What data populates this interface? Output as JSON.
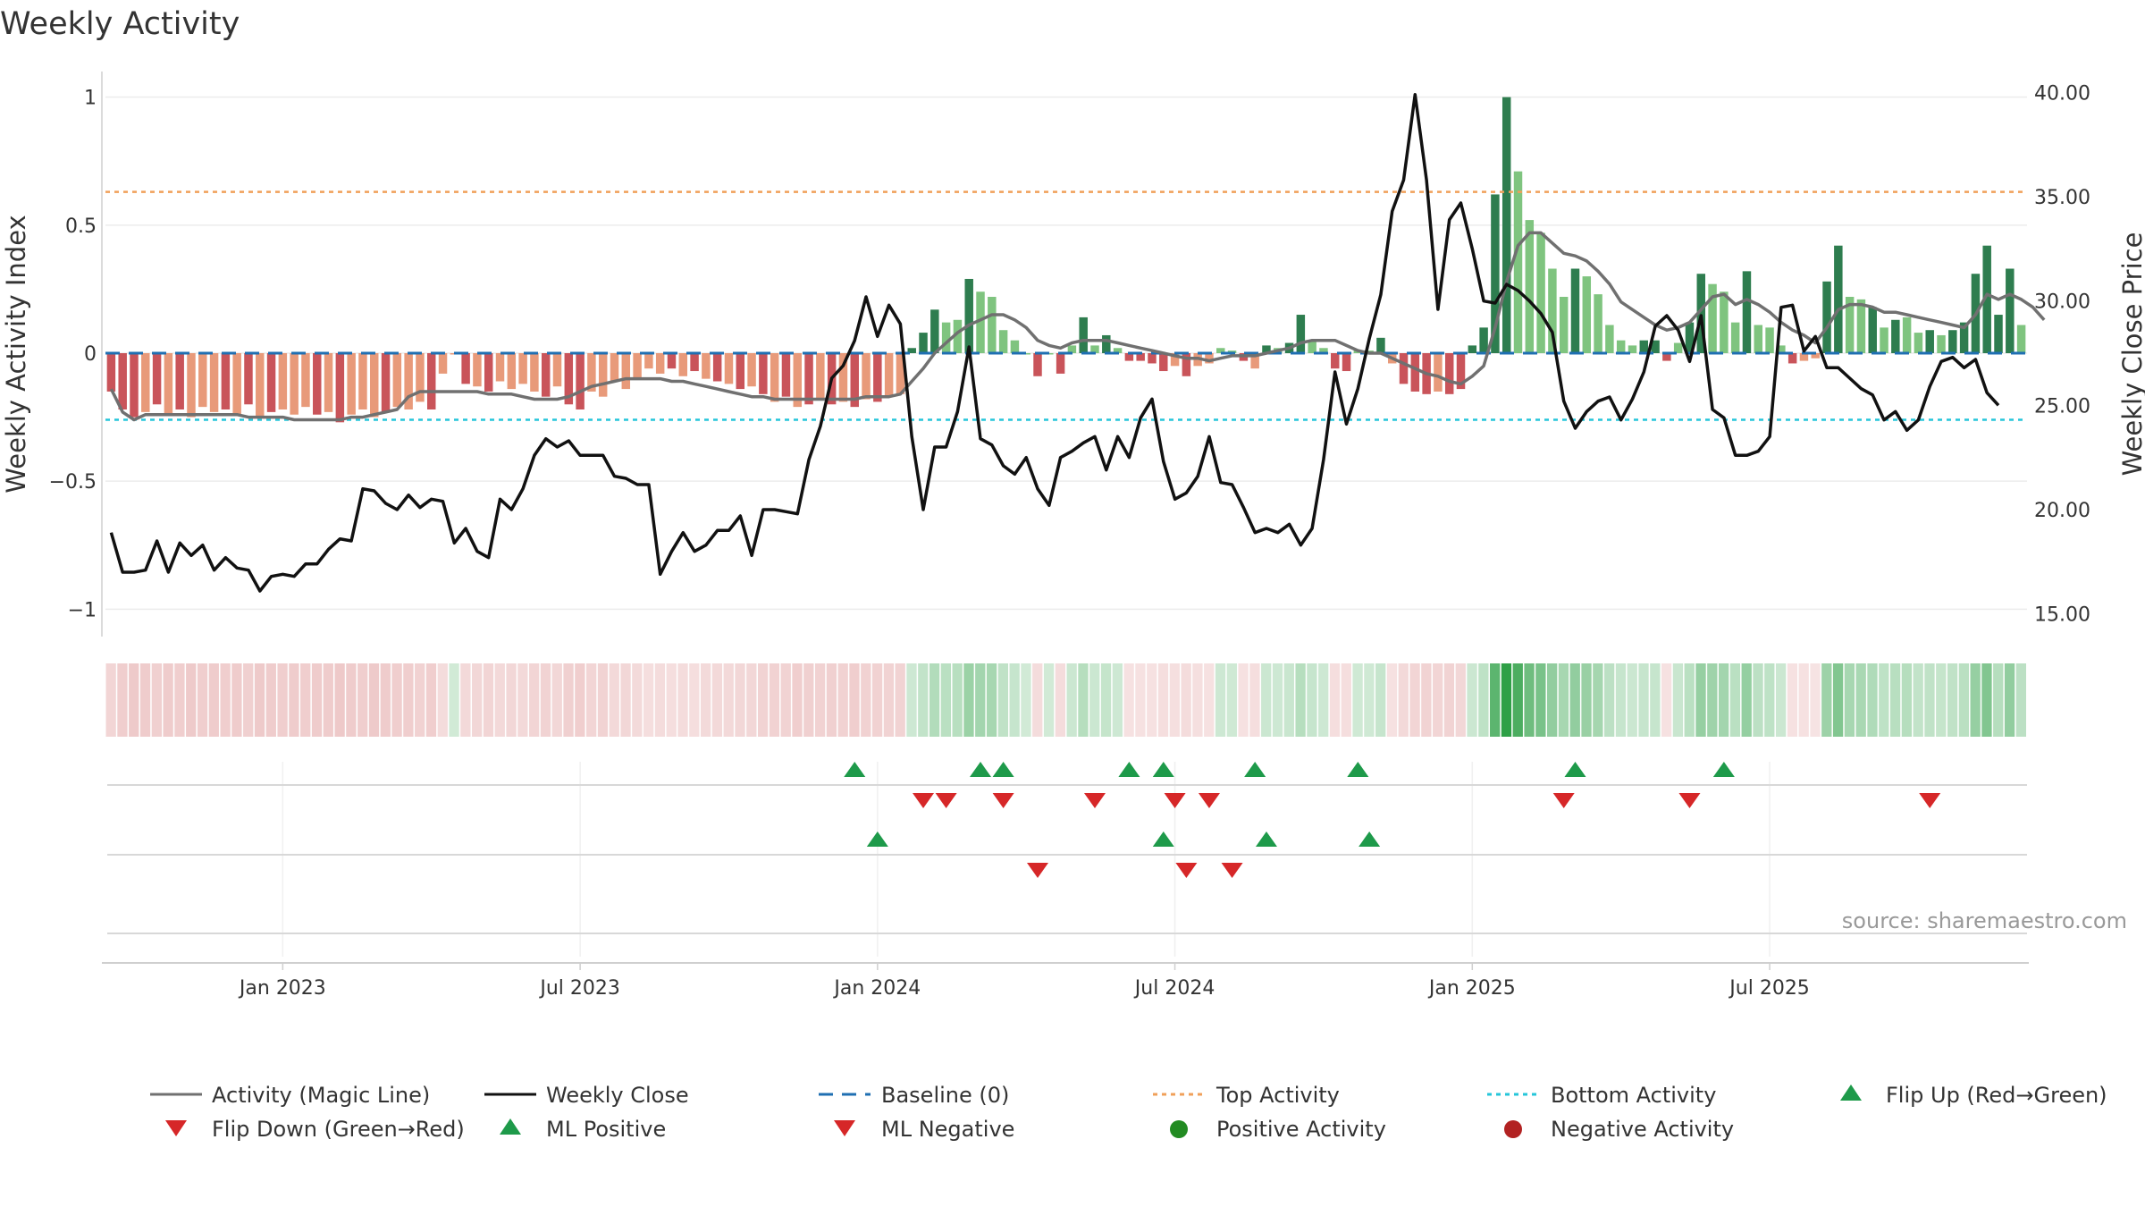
{
  "chart_data": {
    "type": "bar",
    "title": "Weekly Activity",
    "ylabel": "Weekly Activity Index",
    "y2label": "Weekly Close Price",
    "source": "source: sharemaestro.com",
    "ylim": [
      -1.1,
      1.1
    ],
    "y2lim": [
      14.0,
      41.0
    ],
    "yticks": [
      {
        "value": 1,
        "label": "1"
      },
      {
        "value": 0.5,
        "label": "0.5"
      },
      {
        "value": 0,
        "label": "0"
      },
      {
        "value": -0.5,
        "label": "−0.5"
      },
      {
        "value": -1,
        "label": "−1"
      }
    ],
    "y2ticks": [
      {
        "value": 40,
        "label": "40.00"
      },
      {
        "value": 35,
        "label": "35.00"
      },
      {
        "value": 30,
        "label": "30.00"
      },
      {
        "value": 25,
        "label": "25.00"
      },
      {
        "value": 20,
        "label": "20.00"
      },
      {
        "value": 15,
        "label": "15.00"
      }
    ],
    "xticks": [
      {
        "week": 15,
        "label": "Jan 2023"
      },
      {
        "week": 41,
        "label": "Jul 2023"
      },
      {
        "week": 67,
        "label": "Jan 2024"
      },
      {
        "week": 93,
        "label": "Jul 2024"
      },
      {
        "week": 119,
        "label": "Jan 2025"
      },
      {
        "week": 145,
        "label": "Jul 2025"
      }
    ],
    "top_activity": 0.63,
    "bottom_activity": -0.26,
    "baseline": 0,
    "colors": {
      "pos_strong": "#2e7d4f",
      "pos_light": "#7fc47f",
      "neg_strong": "#c9545a",
      "neg_light": "#e89a7a",
      "magic_line": "#707070",
      "close_line": "#111111",
      "baseline": "#1f6fb2",
      "top_line": "#f0a05a",
      "bottom_line": "#26c6da",
      "up_marker": "#1e9a4a",
      "down_marker": "#d62728",
      "pos_dot": "#228b22",
      "neg_dot": "#b22222"
    },
    "activity": [
      -0.15,
      -0.22,
      -0.25,
      -0.23,
      -0.2,
      -0.24,
      -0.22,
      -0.25,
      -0.21,
      -0.23,
      -0.22,
      -0.24,
      -0.2,
      -0.25,
      -0.23,
      -0.22,
      -0.24,
      -0.21,
      -0.24,
      -0.23,
      -0.27,
      -0.24,
      -0.22,
      -0.25,
      -0.23,
      -0.21,
      -0.22,
      -0.19,
      -0.22,
      -0.08,
      0,
      -0.12,
      -0.13,
      -0.15,
      -0.11,
      -0.14,
      -0.12,
      -0.15,
      -0.17,
      -0.13,
      -0.2,
      -0.22,
      -0.15,
      -0.17,
      -0.11,
      -0.14,
      -0.1,
      -0.06,
      -0.08,
      -0.06,
      -0.09,
      -0.07,
      -0.1,
      -0.11,
      -0.12,
      -0.14,
      -0.13,
      -0.16,
      -0.19,
      -0.17,
      -0.21,
      -0.2,
      -0.18,
      -0.2,
      -0.19,
      -0.21,
      -0.18,
      -0.19,
      -0.17,
      -0.16,
      0.02,
      0.08,
      0.17,
      0.12,
      0.13,
      0.29,
      0.24,
      0.22,
      0.09,
      0.05,
      0,
      -0.09,
      0,
      -0.08,
      0.03,
      0.14,
      0.03,
      0.07,
      0.02,
      -0.03,
      -0.03,
      -0.04,
      -0.07,
      -0.05,
      -0.09,
      -0.05,
      -0.04,
      0.02,
      0.01,
      -0.03,
      -0.06,
      0.03,
      0.02,
      0.04,
      0.15,
      0.05,
      0.02,
      -0.06,
      -0.07,
      0.01,
      0.01,
      0.06,
      -0.04,
      -0.12,
      -0.15,
      -0.16,
      -0.15,
      -0.16,
      -0.14,
      0.03,
      0.1,
      0.62,
      1.0,
      0.71,
      0.52,
      0.47,
      0.33,
      0.22,
      0.33,
      0.3,
      0.23,
      0.11,
      0.05,
      0.03,
      0.05,
      0.05,
      -0.03,
      0.04,
      0.12,
      0.31,
      0.27,
      0.24,
      0.12,
      0.32,
      0.11,
      0.1,
      0.03,
      -0.04,
      -0.03,
      -0.02,
      0.28,
      0.42,
      0.22,
      0.21,
      0.18,
      0.1,
      0.13,
      0.14,
      0.08,
      0.09,
      0.07,
      0.09,
      0.12,
      0.31,
      0.42,
      0.15,
      0.33,
      0.11
    ],
    "activity_style": [
      "neg_strong",
      "neg_strong",
      "neg_strong",
      "neg_light",
      "neg_strong",
      "neg_light",
      "neg_strong",
      "neg_light",
      "neg_light",
      "neg_light",
      "neg_strong",
      "neg_light",
      "neg_strong",
      "neg_light",
      "neg_strong",
      "neg_light",
      "neg_light",
      "neg_light",
      "neg_strong",
      "neg_light",
      "neg_strong",
      "neg_light",
      "neg_light",
      "neg_light",
      "neg_strong",
      "neg_light",
      "neg_light",
      "neg_light",
      "neg_strong",
      "neg_light",
      "neg_light",
      "neg_strong",
      "neg_light",
      "neg_strong",
      "neg_light",
      "neg_light",
      "neg_light",
      "neg_light",
      "neg_strong",
      "neg_light",
      "neg_strong",
      "neg_strong",
      "neg_light",
      "neg_light",
      "neg_light",
      "neg_light",
      "neg_light",
      "neg_light",
      "neg_light",
      "neg_strong",
      "neg_light",
      "neg_strong",
      "neg_light",
      "neg_strong",
      "neg_light",
      "neg_strong",
      "neg_light",
      "neg_strong",
      "neg_light",
      "neg_strong",
      "neg_light",
      "neg_strong",
      "neg_light",
      "neg_strong",
      "neg_light",
      "neg_strong",
      "neg_light",
      "neg_strong",
      "neg_light",
      "neg_light",
      "pos_strong",
      "pos_strong",
      "pos_strong",
      "pos_light",
      "pos_light",
      "pos_strong",
      "pos_light",
      "pos_light",
      "pos_light",
      "pos_light",
      "pos_light",
      "neg_strong",
      "pos_light",
      "neg_strong",
      "pos_light",
      "pos_strong",
      "pos_light",
      "pos_strong",
      "pos_light",
      "neg_strong",
      "neg_strong",
      "neg_strong",
      "neg_strong",
      "neg_light",
      "neg_strong",
      "neg_light",
      "neg_light",
      "pos_light",
      "pos_light",
      "neg_strong",
      "neg_light",
      "pos_strong",
      "pos_light",
      "pos_strong",
      "pos_strong",
      "pos_light",
      "pos_light",
      "neg_strong",
      "neg_strong",
      "pos_light",
      "pos_light",
      "pos_strong",
      "neg_light",
      "neg_strong",
      "neg_strong",
      "neg_strong",
      "neg_light",
      "neg_strong",
      "neg_strong",
      "pos_strong",
      "pos_strong",
      "pos_strong",
      "pos_strong",
      "pos_light",
      "pos_light",
      "pos_light",
      "pos_light",
      "pos_light",
      "pos_strong",
      "pos_light",
      "pos_light",
      "pos_light",
      "pos_light",
      "pos_light",
      "pos_strong",
      "pos_strong",
      "neg_strong",
      "pos_light",
      "pos_strong",
      "pos_strong",
      "pos_light",
      "pos_light",
      "pos_light",
      "pos_strong",
      "pos_light",
      "pos_light",
      "pos_light",
      "neg_strong",
      "neg_light",
      "neg_light",
      "pos_strong",
      "pos_strong",
      "pos_light",
      "pos_light",
      "pos_strong",
      "pos_light",
      "pos_strong",
      "pos_light",
      "pos_light",
      "pos_strong",
      "pos_light",
      "pos_strong",
      "pos_strong",
      "pos_strong",
      "pos_strong",
      "pos_strong",
      "pos_strong",
      "pos_light"
    ],
    "magic_line": [
      -0.14,
      -0.23,
      -0.26,
      -0.24,
      -0.24,
      -0.24,
      -0.24,
      -0.24,
      -0.24,
      -0.24,
      -0.24,
      -0.24,
      -0.25,
      -0.25,
      -0.25,
      -0.25,
      -0.26,
      -0.26,
      -0.26,
      -0.26,
      -0.26,
      -0.25,
      -0.25,
      -0.24,
      -0.23,
      -0.22,
      -0.17,
      -0.15,
      -0.15,
      -0.15,
      -0.15,
      -0.15,
      -0.15,
      -0.16,
      -0.16,
      -0.16,
      -0.17,
      -0.18,
      -0.18,
      -0.18,
      -0.17,
      -0.15,
      -0.13,
      -0.12,
      -0.11,
      -0.1,
      -0.1,
      -0.1,
      -0.1,
      -0.11,
      -0.11,
      -0.12,
      -0.13,
      -0.14,
      -0.15,
      -0.16,
      -0.17,
      -0.17,
      -0.18,
      -0.18,
      -0.18,
      -0.18,
      -0.18,
      -0.18,
      -0.18,
      -0.18,
      -0.17,
      -0.17,
      -0.17,
      -0.16,
      -0.11,
      -0.06,
      0,
      0.04,
      0.08,
      0.11,
      0.13,
      0.15,
      0.15,
      0.13,
      0.1,
      0.05,
      0.03,
      0.02,
      0.04,
      0.05,
      0.05,
      0.05,
      0.04,
      0.03,
      0.02,
      0.01,
      0,
      -0.01,
      -0.02,
      -0.02,
      -0.03,
      -0.02,
      -0.01,
      -0.01,
      -0.01,
      0,
      0.01,
      0.02,
      0.04,
      0.05,
      0.05,
      0.05,
      0.03,
      0.01,
      0,
      0,
      -0.02,
      -0.04,
      -0.06,
      -0.08,
      -0.09,
      -0.11,
      -0.12,
      -0.09,
      -0.05,
      0.1,
      0.28,
      0.42,
      0.47,
      0.47,
      0.43,
      0.39,
      0.38,
      0.36,
      0.32,
      0.27,
      0.2,
      0.17,
      0.14,
      0.11,
      0.09,
      0.1,
      0.12,
      0.17,
      0.22,
      0.23,
      0.19,
      0.21,
      0.19,
      0.16,
      0.12,
      0.09,
      0.07,
      0.04,
      0.1,
      0.17,
      0.19,
      0.19,
      0.18,
      0.16,
      0.16,
      0.15,
      0.14,
      0.13,
      0.12,
      0.11,
      0.1,
      0.15,
      0.23,
      0.21,
      0.23,
      0.21,
      0.18,
      0.13
    ],
    "weekly_close": [
      18.9,
      17.0,
      17.0,
      17.1,
      18.5,
      17.0,
      18.4,
      17.8,
      18.3,
      17.1,
      17.7,
      17.2,
      17.1,
      16.1,
      16.8,
      16.9,
      16.8,
      17.4,
      17.4,
      18.1,
      18.6,
      18.5,
      21.0,
      20.9,
      20.3,
      20.0,
      20.7,
      20.1,
      20.5,
      20.4,
      18.4,
      19.1,
      18.0,
      17.7,
      20.5,
      20.0,
      21.0,
      22.6,
      23.4,
      23.0,
      23.3,
      22.6,
      22.6,
      22.6,
      21.6,
      21.5,
      21.2,
      21.2,
      16.9,
      18.0,
      18.9,
      18.0,
      18.3,
      19.0,
      19.0,
      19.7,
      17.8,
      20.0,
      20.0,
      19.9,
      19.8,
      22.4,
      24.0,
      26.3,
      26.9,
      28.1,
      30.2,
      28.3,
      29.8,
      28.9,
      23.5,
      20.0,
      23.0,
      23.0,
      24.7,
      27.8,
      23.4,
      23.1,
      22.1,
      21.7,
      22.5,
      21.0,
      20.2,
      22.5,
      22.8,
      23.2,
      23.5,
      21.9,
      23.5,
      22.5,
      24.4,
      25.3,
      22.3,
      20.5,
      20.8,
      21.6,
      23.5,
      21.3,
      21.2,
      20.1,
      18.9,
      19.1,
      18.9,
      19.3,
      18.3,
      19.1,
      22.4,
      26.6,
      24.1,
      25.8,
      28.2,
      30.3,
      34.3,
      35.8,
      39.9,
      35.8,
      29.6,
      33.9,
      34.7,
      32.5,
      30.0,
      29.9,
      30.8,
      30.5,
      30.0,
      29.4,
      28.5,
      25.2,
      23.9,
      24.7,
      25.2,
      25.4,
      24.3,
      25.3,
      26.6,
      28.8,
      29.3,
      28.6,
      27.1,
      29.3,
      24.8,
      24.4,
      22.6,
      22.6,
      22.8,
      23.5,
      29.7,
      29.8,
      27.6,
      28.3,
      26.8,
      26.8,
      26.3,
      25.8,
      25.5,
      24.3,
      24.7,
      23.8,
      24.3,
      25.9,
      27.1,
      27.3,
      26.8,
      27.2,
      25.6,
      25.0
    ]
  },
  "markers": {
    "flip_up": [
      65,
      76,
      78,
      89,
      92,
      100,
      109,
      128,
      141
    ],
    "flip_down": [
      71,
      73,
      78,
      86,
      93,
      96,
      127,
      138,
      159
    ],
    "ml_positive": [
      67,
      92,
      101,
      110
    ],
    "ml_negative": [
      81,
      94,
      98
    ]
  },
  "legend": {
    "magic_line": "Activity (Magic Line)",
    "weekly_close": "Weekly Close",
    "baseline": "Baseline (0)",
    "top_activity": "Top Activity",
    "bottom_activity": "Bottom Activity",
    "flip_up": "Flip Up (Red→Green)",
    "flip_down": "Flip Down (Green→Red)",
    "ml_positive": "ML Positive",
    "ml_negative": "ML Negative",
    "positive_activity": "Positive Activity",
    "negative_activity": "Negative Activity"
  }
}
